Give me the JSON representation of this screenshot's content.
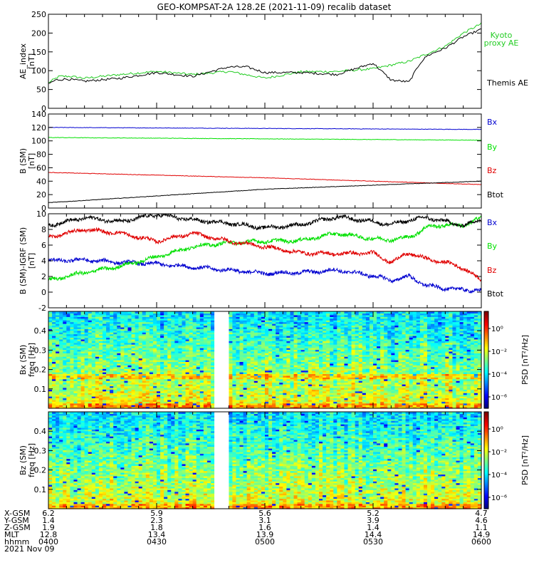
{
  "title": "GEO-KOMPSAT-2A 128.2E (2021-11-09) recalib dataset",
  "colors": {
    "black": "#000000",
    "red": "#e00000",
    "green": "#00e000",
    "blue": "#0000d0",
    "lime": "#22cc22"
  },
  "chart_data": [
    {
      "type": "line",
      "ylabel": "AE_index\n[nT]",
      "ylim": [
        0,
        250
      ],
      "yticks": [
        "0",
        "50",
        "100",
        "150",
        "200",
        "250"
      ],
      "series": [
        {
          "name": "Kyoto proxy AE",
          "legend_lines": [
            "Kyoto",
            "proxy AE"
          ],
          "color": "#22cc22",
          "x": [
            0,
            3,
            6,
            10,
            20,
            30,
            40,
            50,
            60,
            70,
            80,
            90,
            100,
            105,
            110,
            115,
            120
          ],
          "y": [
            68,
            85,
            85,
            80,
            90,
            98,
            90,
            98,
            80,
            97,
            98,
            105,
            125,
            145,
            165,
            200,
            225
          ]
        },
        {
          "name": "Themis AE",
          "color": "#000000",
          "x": [
            0,
            2,
            5,
            10,
            20,
            30,
            40,
            50,
            55,
            60,
            70,
            80,
            90,
            95,
            100,
            103,
            105,
            110,
            115,
            120
          ],
          "y": [
            65,
            75,
            78,
            72,
            80,
            95,
            85,
            110,
            110,
            95,
            95,
            90,
            120,
            75,
            70,
            120,
            140,
            160,
            190,
            210
          ]
        }
      ]
    },
    {
      "type": "line",
      "ylabel": "B (SM)\n[nT]",
      "ylim": [
        0,
        140
      ],
      "yticks": [
        "0",
        "20",
        "40",
        "60",
        "80",
        "100",
        "120",
        "140"
      ],
      "series": [
        {
          "name": "Bx",
          "color": "#0000d0",
          "x": [
            0,
            120
          ],
          "y": [
            120,
            117
          ]
        },
        {
          "name": "By",
          "color": "#00e000",
          "x": [
            0,
            120
          ],
          "y": [
            105,
            101
          ]
        },
        {
          "name": "Bz",
          "color": "#e00000",
          "x": [
            0,
            60,
            120
          ],
          "y": [
            53,
            45,
            35
          ]
        },
        {
          "name": "Btot",
          "color": "#000000",
          "x": [
            0,
            60,
            120
          ],
          "y": [
            8,
            28,
            40
          ]
        }
      ]
    },
    {
      "type": "line",
      "ylabel": "B (SM)-IGRF (SM)\n[nT]",
      "ylim": [
        -2,
        10
      ],
      "yticks": [
        "-2",
        "0",
        "2",
        "4",
        "6",
        "8",
        "10"
      ],
      "series": [
        {
          "name": "Bx",
          "color": "#0000d0",
          "x": [
            0,
            10,
            20,
            30,
            40,
            50,
            60,
            70,
            80,
            90,
            95,
            100,
            105,
            110,
            115,
            120
          ],
          "y": [
            4.0,
            4.1,
            3.8,
            3.6,
            3.2,
            2.8,
            2.4,
            2.5,
            2.8,
            2.1,
            1.5,
            2.0,
            0.8,
            0.5,
            0.3,
            0.2
          ]
        },
        {
          "name": "By",
          "color": "#00e000",
          "x": [
            0,
            10,
            20,
            30,
            40,
            50,
            60,
            70,
            80,
            90,
            95,
            100,
            105,
            110,
            115,
            120
          ],
          "y": [
            1.5,
            2.5,
            3.3,
            4.5,
            5.8,
            6.3,
            6.5,
            6.6,
            7.5,
            6.8,
            6.7,
            7.0,
            8.3,
            8.6,
            8.5,
            9.5
          ]
        },
        {
          "name": "Bz",
          "color": "#e00000",
          "x": [
            0,
            10,
            20,
            30,
            40,
            50,
            60,
            70,
            80,
            90,
            95,
            100,
            105,
            110,
            115,
            120
          ],
          "y": [
            7.0,
            8.0,
            7.5,
            6.5,
            7.5,
            6.5,
            5.8,
            5.0,
            4.9,
            5.0,
            3.8,
            5.0,
            4.2,
            3.8,
            3.1,
            1.5
          ]
        },
        {
          "name": "Btot",
          "color": "#000000",
          "x": [
            0,
            10,
            20,
            30,
            40,
            50,
            60,
            70,
            80,
            90,
            95,
            100,
            105,
            110,
            115,
            120
          ],
          "y": [
            8.5,
            9.5,
            9.0,
            9.9,
            9.2,
            8.8,
            8.2,
            8.6,
            9.6,
            9.0,
            8.6,
            9.2,
            9.5,
            9.0,
            8.5,
            9.2
          ]
        }
      ]
    },
    {
      "type": "heatmap",
      "ylabel": "Bx (SM)\nfreq [Hz]",
      "ylim": [
        0,
        0.5
      ],
      "yticks": [
        "0.1",
        "0.2",
        "0.3",
        "0.4"
      ],
      "data_gap": [
        46,
        50
      ],
      "colorbar": {
        "label": "PSD [nT²/Hz]",
        "ticks": [
          "10⁰",
          "10⁻²",
          "10⁻⁴",
          "10⁻⁶"
        ],
        "log10_range": [
          -7,
          1.5
        ]
      }
    },
    {
      "type": "heatmap",
      "ylabel": "Bz (SM)\nfreq [Hz]",
      "ylim": [
        0,
        0.5
      ],
      "yticks": [
        "0.1",
        "0.2",
        "0.3",
        "0.4"
      ],
      "data_gap": [
        46,
        50
      ],
      "colorbar": {
        "label": "PSD [nT²/Hz]",
        "ticks": [
          "10⁰",
          "10⁻²",
          "10⁻⁴",
          "10⁻⁶"
        ],
        "log10_range": [
          -7,
          1.5
        ]
      }
    }
  ],
  "x_axis": {
    "xlim": [
      0,
      120
    ],
    "row_labels": [
      "X-GSM",
      "Y-GSM",
      "Z-GSM",
      "MLT",
      "hhmm",
      "2021 Nov 09"
    ],
    "ticks": [
      {
        "x": 0,
        "values": [
          "6.2",
          "1.4",
          "1.9",
          "12.8",
          "0400"
        ]
      },
      {
        "x": 30,
        "values": [
          "5.9",
          "2.3",
          "1.8",
          "13.4",
          "0430"
        ]
      },
      {
        "x": 60,
        "values": [
          "5.6",
          "3.1",
          "1.6",
          "13.9",
          "0500"
        ]
      },
      {
        "x": 90,
        "values": [
          "5.2",
          "3.9",
          "1.4",
          "14.4",
          "0530"
        ]
      },
      {
        "x": 120,
        "values": [
          "4.7",
          "4.6",
          "1.1",
          "14.9",
          "0600"
        ]
      }
    ]
  }
}
